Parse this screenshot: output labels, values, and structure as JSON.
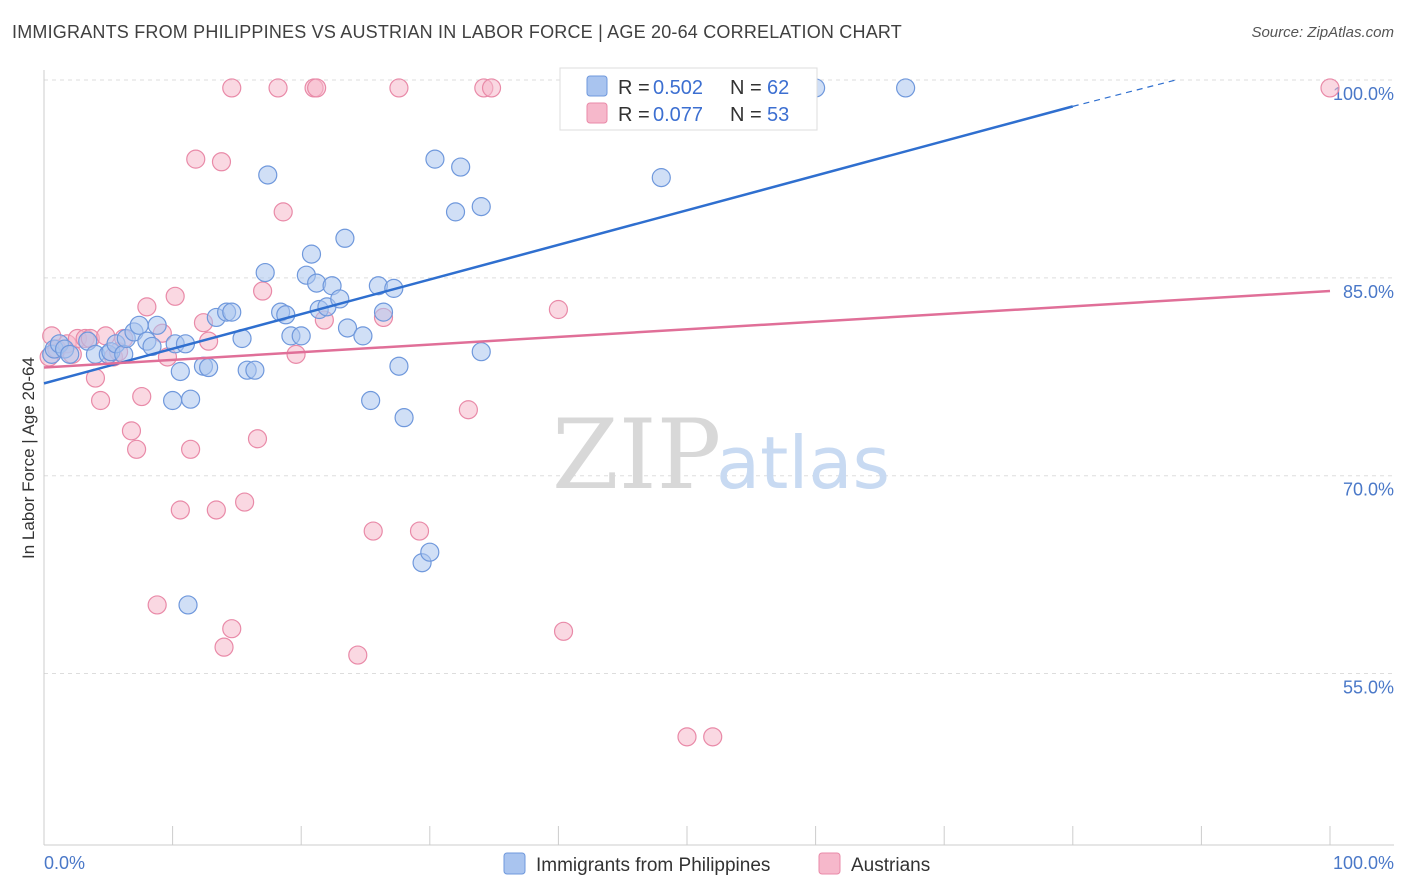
{
  "header": {
    "title": "IMMIGRANTS FROM PHILIPPINES VS AUSTRIAN IN LABOR FORCE | AGE 20-64 CORRELATION CHART",
    "source": "Source: ZipAtlas.com"
  },
  "watermark": {
    "zip": "ZIP",
    "atlas": "atlas"
  },
  "colors": {
    "blue_fill": "#a9c4ef",
    "blue_stroke": "#6f98dc",
    "blue_line": "#2f6fcf",
    "pink_fill": "#f6b8cb",
    "pink_stroke": "#e98aa8",
    "pink_line": "#e06f98",
    "grid": "#dddddd",
    "tick_label": "#4a78c8"
  },
  "chart_data": {
    "type": "scatter",
    "title": "IMMIGRANTS FROM PHILIPPINES VS AUSTRIAN IN LABOR FORCE | AGE 20-64 CORRELATION CHART",
    "xlabel": "",
    "ylabel": "In Labor Force | Age 20-64",
    "xlim": [
      0,
      100
    ],
    "ylim": [
      42,
      100
    ],
    "x_tick_labels": [
      "0.0%",
      "100.0%"
    ],
    "y_ticks": [
      55,
      70,
      85,
      100
    ],
    "y_tick_labels": [
      "55.0%",
      "70.0%",
      "85.0%",
      "100.0%"
    ],
    "grid": true,
    "legend": {
      "placement": "top-center",
      "entries": [
        {
          "r_label": "R = ",
          "r_value": "0.502",
          "n_label": "N = ",
          "n_value": "62"
        },
        {
          "r_label": "R = ",
          "r_value": "0.077",
          "n_label": "N = ",
          "n_value": "53"
        }
      ]
    },
    "series": [
      {
        "name": "Immigrants from Philippines",
        "color": "#a9c4ef",
        "trend": {
          "x0": 0,
          "y0": 77.0,
          "x1": 80,
          "y1": 98.0,
          "dashed_to_x": 88,
          "dashed_to_y": 100.0
        },
        "points": [
          [
            0.6,
            79.2
          ],
          [
            0.8,
            79.6
          ],
          [
            1.2,
            80.0
          ],
          [
            1.6,
            79.6
          ],
          [
            2.0,
            79.2
          ],
          [
            3.4,
            80.2
          ],
          [
            4.0,
            79.2
          ],
          [
            5.0,
            79.2
          ],
          [
            5.2,
            79.4
          ],
          [
            5.6,
            80.0
          ],
          [
            6.2,
            79.2
          ],
          [
            6.4,
            80.4
          ],
          [
            7.0,
            80.9
          ],
          [
            7.4,
            81.4
          ],
          [
            8.0,
            80.2
          ],
          [
            8.4,
            79.8
          ],
          [
            8.8,
            81.4
          ],
          [
            10.2,
            80.0
          ],
          [
            10.6,
            77.9
          ],
          [
            11.0,
            80.0
          ],
          [
            10.0,
            75.7
          ],
          [
            11.4,
            75.8
          ],
          [
            11.2,
            60.2
          ],
          [
            12.4,
            78.3
          ],
          [
            12.8,
            78.2
          ],
          [
            13.4,
            82.0
          ],
          [
            14.2,
            82.4
          ],
          [
            14.6,
            82.4
          ],
          [
            15.4,
            80.4
          ],
          [
            15.8,
            78.0
          ],
          [
            16.4,
            78.0
          ],
          [
            17.2,
            85.4
          ],
          [
            17.4,
            92.8
          ],
          [
            18.4,
            82.4
          ],
          [
            18.8,
            82.2
          ],
          [
            19.2,
            80.6
          ],
          [
            20.0,
            80.6
          ],
          [
            20.4,
            85.2
          ],
          [
            20.8,
            86.8
          ],
          [
            21.2,
            84.6
          ],
          [
            21.4,
            82.6
          ],
          [
            22.0,
            82.8
          ],
          [
            22.4,
            84.4
          ],
          [
            23.0,
            83.4
          ],
          [
            23.4,
            88.0
          ],
          [
            23.6,
            81.2
          ],
          [
            24.8,
            80.6
          ],
          [
            25.4,
            75.7
          ],
          [
            26.0,
            84.4
          ],
          [
            26.4,
            82.4
          ],
          [
            27.2,
            84.2
          ],
          [
            27.6,
            78.3
          ],
          [
            28.0,
            74.4
          ],
          [
            29.4,
            63.4
          ],
          [
            30.0,
            64.2
          ],
          [
            30.4,
            94.0
          ],
          [
            32.0,
            90.0
          ],
          [
            32.4,
            93.4
          ],
          [
            34.0,
            90.4
          ],
          [
            34.0,
            79.4
          ],
          [
            48.0,
            92.6
          ],
          [
            60.0,
            99.4
          ],
          [
            67.0,
            99.4
          ]
        ]
      },
      {
        "name": "Austrians",
        "color": "#f6b8cb",
        "trend": {
          "x0": 0,
          "y0": 78.2,
          "x1": 100,
          "y1": 84.0
        },
        "points": [
          [
            0.4,
            79.0
          ],
          [
            0.6,
            80.6
          ],
          [
            1.0,
            79.6
          ],
          [
            1.8,
            80.0
          ],
          [
            2.2,
            79.2
          ],
          [
            2.6,
            80.4
          ],
          [
            3.2,
            80.4
          ],
          [
            3.6,
            80.4
          ],
          [
            4.0,
            77.4
          ],
          [
            4.4,
            75.7
          ],
          [
            4.8,
            80.6
          ],
          [
            5.4,
            79.0
          ],
          [
            5.8,
            79.4
          ],
          [
            6.2,
            80.4
          ],
          [
            6.8,
            73.4
          ],
          [
            7.2,
            72.0
          ],
          [
            7.6,
            76.0
          ],
          [
            8.0,
            82.8
          ],
          [
            8.8,
            60.2
          ],
          [
            9.2,
            80.8
          ],
          [
            9.6,
            79.0
          ],
          [
            10.2,
            83.6
          ],
          [
            10.6,
            67.4
          ],
          [
            11.4,
            72.0
          ],
          [
            11.8,
            94.0
          ],
          [
            12.4,
            81.6
          ],
          [
            12.8,
            80.2
          ],
          [
            13.4,
            67.4
          ],
          [
            13.8,
            93.8
          ],
          [
            14.0,
            57.0
          ],
          [
            14.6,
            58.4
          ],
          [
            14.6,
            99.4
          ],
          [
            15.6,
            68.0
          ],
          [
            16.6,
            72.8
          ],
          [
            17.0,
            84.0
          ],
          [
            18.2,
            99.4
          ],
          [
            18.6,
            90.0
          ],
          [
            19.6,
            79.2
          ],
          [
            21.0,
            99.4
          ],
          [
            21.2,
            99.4
          ],
          [
            21.8,
            81.8
          ],
          [
            24.4,
            56.4
          ],
          [
            25.6,
            65.8
          ],
          [
            26.4,
            82.0
          ],
          [
            27.6,
            99.4
          ],
          [
            29.2,
            65.8
          ],
          [
            33.0,
            75.0
          ],
          [
            34.2,
            99.4
          ],
          [
            34.8,
            99.4
          ],
          [
            40.0,
            82.6
          ],
          [
            40.4,
            58.2
          ],
          [
            50.0,
            50.2
          ],
          [
            52.0,
            50.2
          ],
          [
            100.0,
            99.4
          ]
        ]
      }
    ]
  },
  "bottom_legend": [
    {
      "label": "Immigrants from Philippines"
    },
    {
      "label": "Austrians"
    }
  ]
}
